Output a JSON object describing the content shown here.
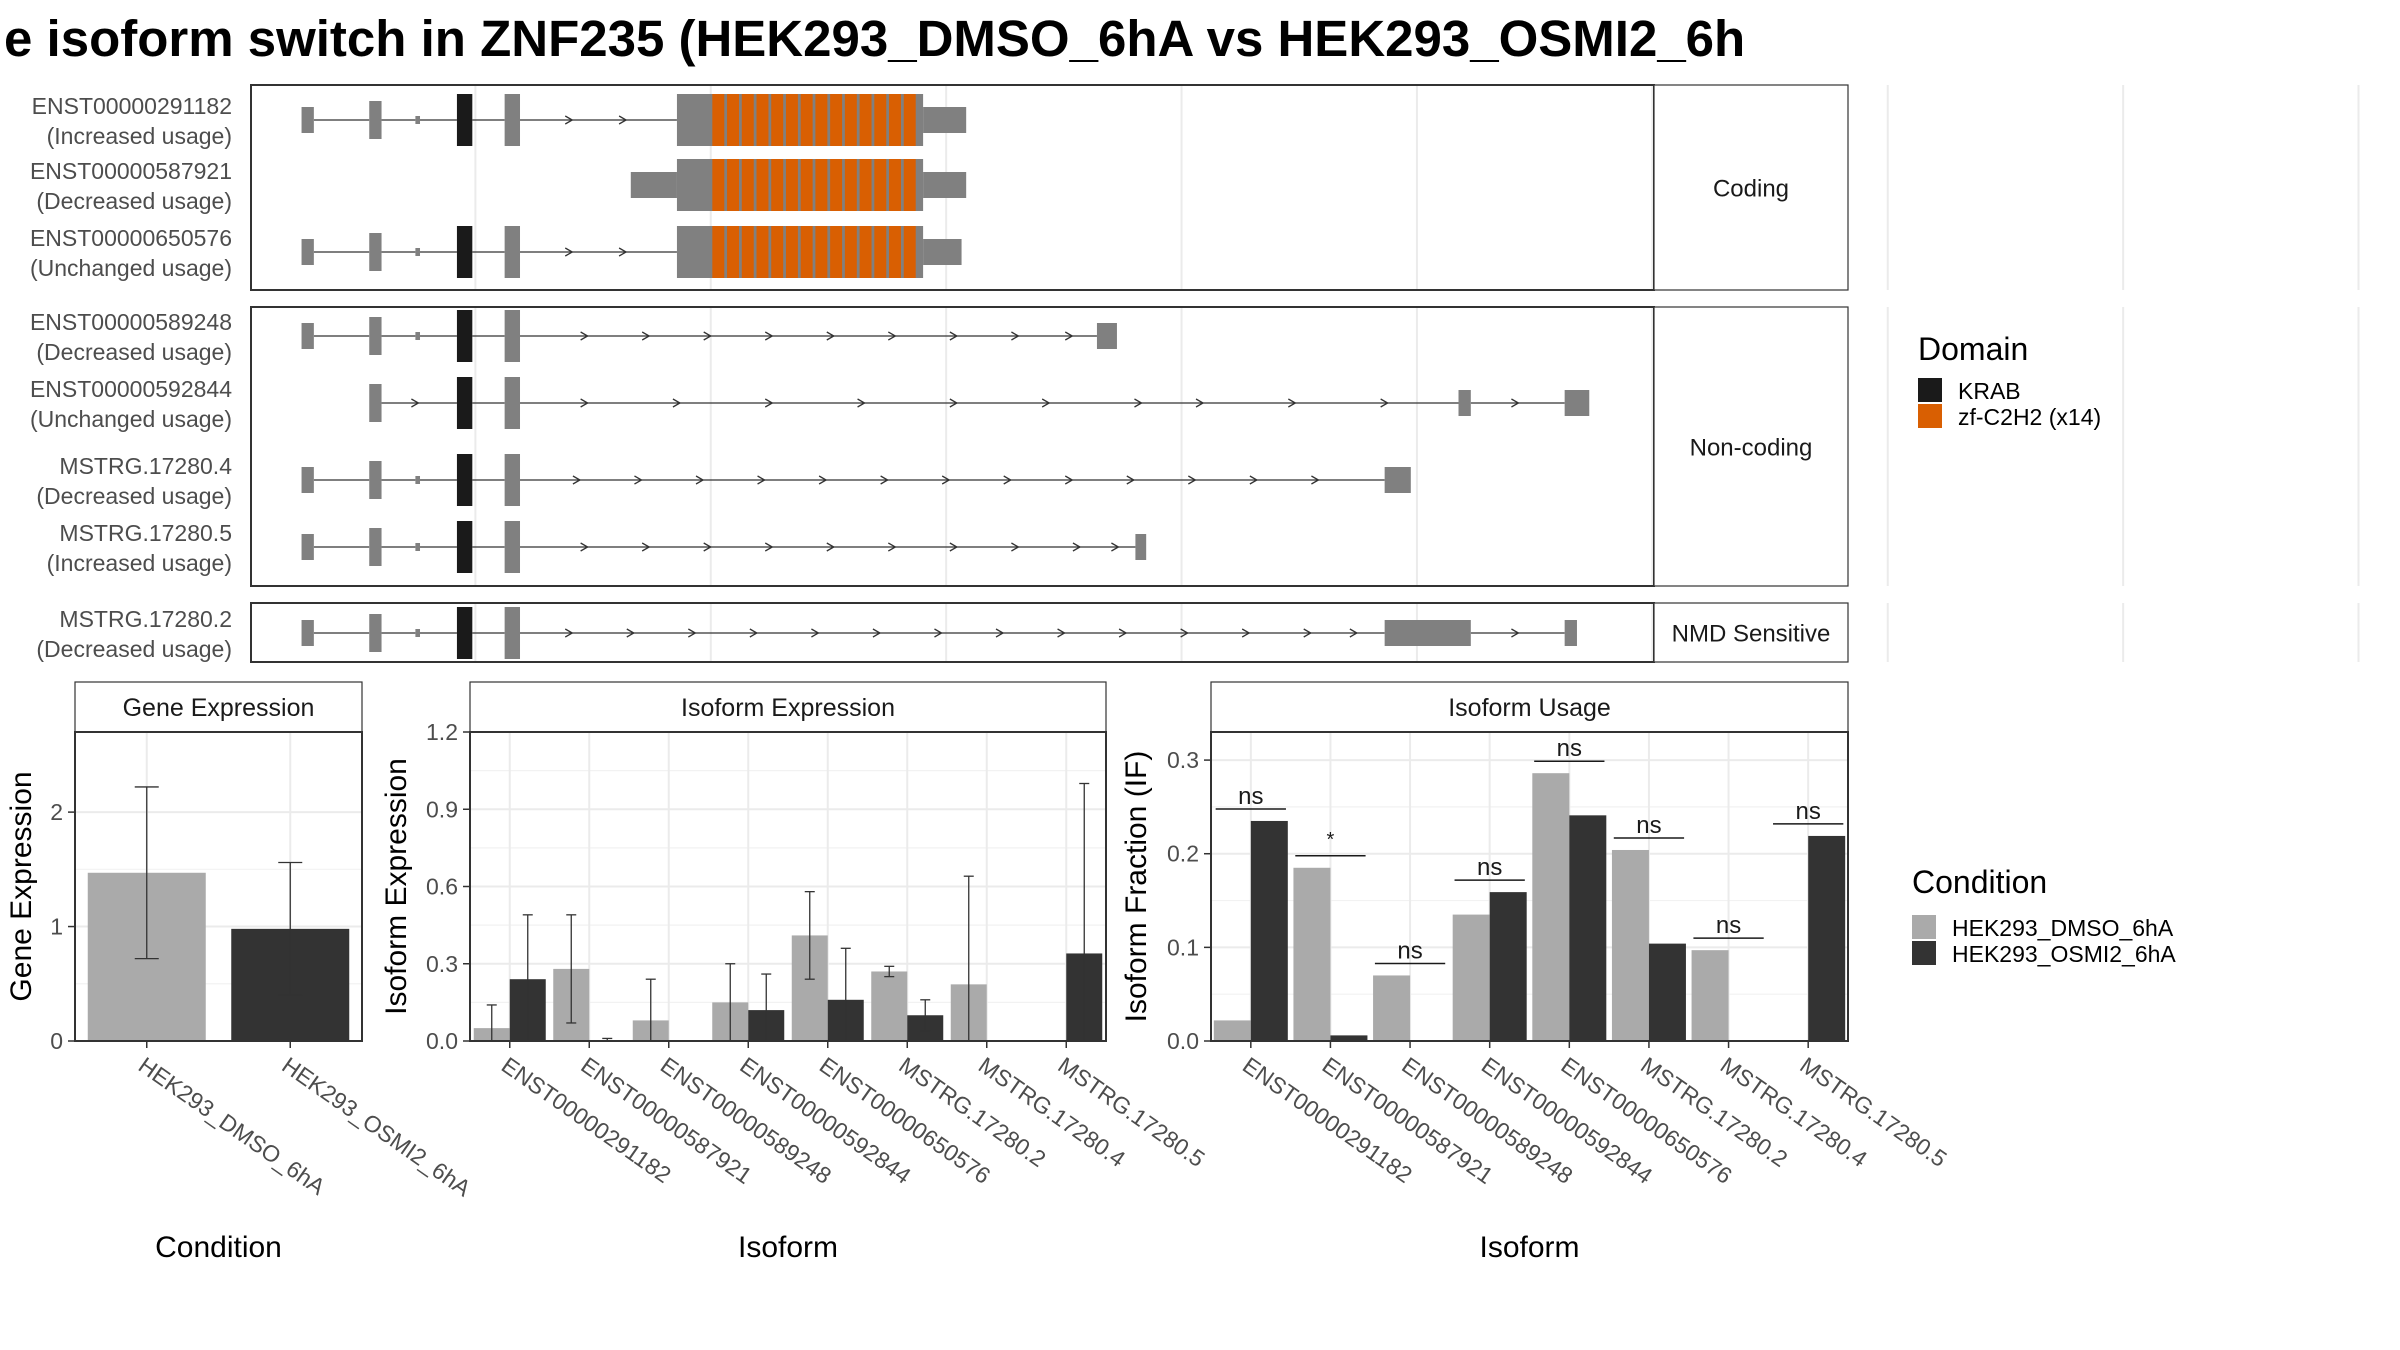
{
  "title": "e isoform switch in ZNF235 (HEK293_DMSO_6hA vs HEK293_OSMI2_6h",
  "colors": {
    "exon": "#808080",
    "krab": "#1a1a1a",
    "znf": "#d95f02",
    "cond1": "#aaaaaa",
    "cond2": "#333333"
  },
  "structure": {
    "groups": [
      {
        "label": "Coding",
        "transcripts": [
          {
            "id": "ENST00000291182",
            "usage": "(Increased usage)"
          },
          {
            "id": "ENST00000587921",
            "usage": "(Decreased usage)"
          },
          {
            "id": "ENST00000650576",
            "usage": "(Unchanged usage)"
          }
        ]
      },
      {
        "label": "Non-coding",
        "transcripts": [
          {
            "id": "ENST00000589248",
            "usage": "(Decreased usage)"
          },
          {
            "id": "ENST00000592844",
            "usage": "(Unchanged usage)"
          },
          {
            "id": "MSTRG.17280.4",
            "usage": "(Decreased usage)"
          },
          {
            "id": "MSTRG.17280.5",
            "usage": "(Increased usage)"
          }
        ]
      },
      {
        "label": "NMD Sensitive",
        "transcripts": [
          {
            "id": "MSTRG.17280.2",
            "usage": "(Decreased usage)"
          }
        ]
      }
    ]
  },
  "domain_legend": {
    "title": "Domain",
    "items": [
      {
        "label": "KRAB",
        "color": "#1a1a1a"
      },
      {
        "label": "zf-C2H2 (x14)",
        "color": "#d95f02"
      }
    ]
  },
  "condition_legend": {
    "title": "Condition",
    "items": [
      {
        "label": "HEK293_DMSO_6hA",
        "color": "#aaaaaa"
      },
      {
        "label": "HEK293_OSMI2_6hA",
        "color": "#333333"
      }
    ]
  },
  "chart_data": [
    {
      "type": "bar",
      "title": "Gene Expression",
      "xlabel": "Condition",
      "ylabel": "Gene Expression",
      "ylim": [
        0,
        2.7
      ],
      "yticks": [
        "0",
        "1",
        "2"
      ],
      "categories": [
        "HEK293_DMSO_6hA",
        "HEK293_OSMI2_6hA"
      ],
      "values": [
        1.47,
        0.98
      ],
      "errors": [
        [
          0.72,
          2.22
        ],
        [
          0.4,
          1.56
        ]
      ]
    },
    {
      "type": "bar",
      "title": "Isoform Expression",
      "xlabel": "Isoform",
      "ylabel": "Isoform Expression",
      "ylim": [
        0,
        1.2
      ],
      "yticks": [
        "0.0",
        "0.3",
        "0.6",
        "0.9",
        "1.2"
      ],
      "categories": [
        "ENST00000291182",
        "ENST00000587921",
        "ENST00000589248",
        "ENST00000592844",
        "ENST00000650576",
        "MSTRG.17280.2",
        "MSTRG.17280.4",
        "MSTRG.17280.5"
      ],
      "series": [
        {
          "name": "HEK293_DMSO_6hA",
          "values": [
            0.05,
            0.28,
            0.08,
            0.15,
            0.41,
            0.27,
            0.22,
            0.0
          ],
          "errors": [
            [
              0.0,
              0.14
            ],
            [
              0.07,
              0.49
            ],
            [
              0.0,
              0.24
            ],
            [
              0.0,
              0.3
            ],
            [
              0.24,
              0.58
            ],
            [
              0.25,
              0.29
            ],
            [
              0.0,
              0.64
            ],
            null
          ]
        },
        {
          "name": "HEK293_OSMI2_6hA",
          "values": [
            0.24,
            0.0,
            0.0,
            0.12,
            0.16,
            0.1,
            0.0,
            0.34
          ],
          "errors": [
            [
              0.0,
              0.49
            ],
            [
              0.0,
              0.01
            ],
            null,
            [
              0.0,
              0.26
            ],
            [
              0.0,
              0.36
            ],
            [
              0.04,
              0.16
            ],
            null,
            [
              0.0,
              1.0
            ]
          ]
        }
      ]
    },
    {
      "type": "bar",
      "title": "Isoform Usage",
      "xlabel": "Isoform",
      "ylabel": "Isoform Fraction (IF)",
      "ylim": [
        0,
        0.33
      ],
      "yticks": [
        "0.0",
        "0.1",
        "0.2",
        "0.3"
      ],
      "categories": [
        "ENST00000291182",
        "ENST00000587921",
        "ENST00000589248",
        "ENST00000592844",
        "ENST00000650576",
        "MSTRG.17280.2",
        "MSTRG.17280.4",
        "MSTRG.17280.5"
      ],
      "series": [
        {
          "name": "HEK293_DMSO_6hA",
          "values": [
            0.022,
            0.185,
            0.07,
            0.135,
            0.286,
            0.204,
            0.097,
            0.0
          ]
        },
        {
          "name": "HEK293_OSMI2_6hA",
          "values": [
            0.235,
            0.006,
            0.0,
            0.159,
            0.241,
            0.104,
            0.0,
            0.219
          ]
        }
      ],
      "significance": [
        "ns",
        "*",
        "ns",
        "ns",
        "ns",
        "ns",
        "ns",
        "ns"
      ]
    }
  ]
}
